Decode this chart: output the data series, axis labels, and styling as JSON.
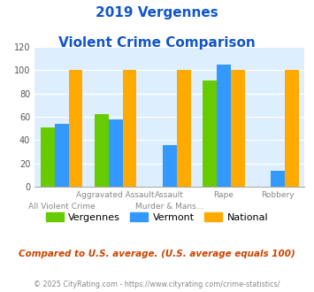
{
  "title_line1": "2019 Vergennes",
  "title_line2": "Violent Crime Comparison",
  "vergennes": [
    51,
    62,
    0,
    91,
    0
  ],
  "vermont": [
    54,
    58,
    36,
    105,
    14
  ],
  "national": [
    100,
    100,
    100,
    100,
    100
  ],
  "color_vergennes": "#66cc00",
  "color_vermont": "#3399ff",
  "color_national": "#ffaa00",
  "ylim": [
    0,
    120
  ],
  "yticks": [
    0,
    20,
    40,
    60,
    80,
    100,
    120
  ],
  "bg_color": "#ddeeff",
  "title_color": "#1155cc",
  "note_text": "Compared to U.S. average. (U.S. average equals 100)",
  "note_color": "#cc4400",
  "footer_text": "© 2025 CityRating.com - https://www.cityrating.com/crime-statistics/",
  "footer_color": "#888888",
  "top_labels": [
    "",
    "Aggravated Assault",
    "Assault",
    "Rape",
    "Robbery"
  ],
  "bottom_labels": [
    "All Violent Crime",
    "",
    "Murder & Mans...",
    "",
    ""
  ],
  "legend_labels": [
    "Vergennes",
    "Vermont",
    "National"
  ]
}
